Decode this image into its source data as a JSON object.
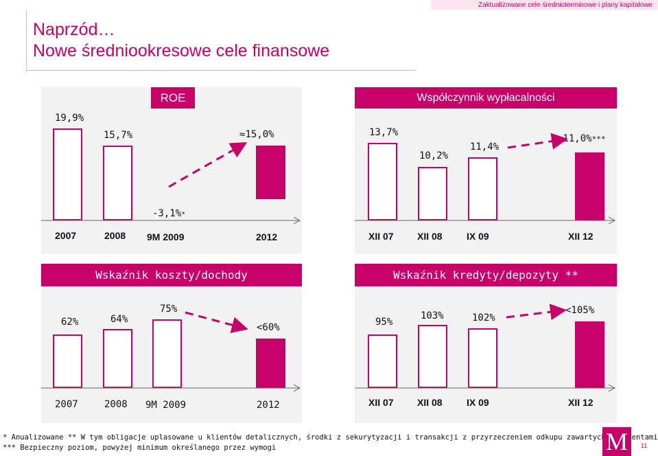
{
  "top_banner": "Zaktualizowane cele średnioterminowe i plany kapitałowe",
  "title_line1": "Naprzód…",
  "title_line2": "Nowe średniookresowe cele finansowe",
  "accent_color": "#c8006a",
  "panels": {
    "roe": {
      "title": "ROE",
      "values": [
        "19,9%",
        "15,7%",
        "-3,1%",
        "15,0%"
      ],
      "star": "*",
      "approx": "≈",
      "years": [
        "2007",
        "2008",
        "9M 2009",
        "2012"
      ]
    },
    "payout": {
      "title": "Współczynnik wypłacalności",
      "values": [
        "13,7%",
        "10,2%",
        "11,4%",
        ">11,0%"
      ],
      "stars": "***",
      "years": [
        "XII 07",
        "XII 08",
        "IX 09",
        "XII 12"
      ]
    },
    "cost_income": {
      "title": "Wskaźnik koszty/dochody",
      "values": [
        "62%",
        "64%",
        "75%",
        "<60%"
      ],
      "years": [
        "2007",
        "2008",
        "9M 2009",
        "2012"
      ]
    },
    "loans_deposits": {
      "title": "Wskaźnik kredyty/depozyty **",
      "values": [
        "95%",
        "103%",
        "102%",
        "<105%"
      ],
      "years": [
        "XII 07",
        "XII 08",
        "IX 09",
        "XII 12"
      ]
    }
  },
  "chart_data": [
    {
      "type": "bar",
      "title": "ROE",
      "categories": [
        "2007",
        "2008",
        "9M 2009",
        "2012"
      ],
      "values": [
        19.9,
        15.7,
        -3.1,
        15.0
      ],
      "unit": "%"
    },
    {
      "type": "bar",
      "title": "Współczynnik wypłacalności",
      "categories": [
        "XII 07",
        "XII 08",
        "IX 09",
        "XII 12"
      ],
      "values": [
        13.7,
        10.2,
        11.4,
        11.0
      ],
      "unit": "%"
    },
    {
      "type": "bar",
      "title": "Wskaźnik koszty/dochody",
      "categories": [
        "2007",
        "2008",
        "9M 2009",
        "2012"
      ],
      "values": [
        62,
        64,
        75,
        60
      ],
      "unit": "%"
    },
    {
      "type": "bar",
      "title": "Wskaźnik kredyty/depozyty **",
      "categories": [
        "XII 07",
        "XII 08",
        "IX 09",
        "XII 12"
      ],
      "values": [
        95,
        103,
        102,
        105
      ],
      "unit": "%"
    }
  ],
  "footnote_line1": "* Anualizowane  ** W tym obligacje uplasowane u klientów detalicznych, środki z sekurytyzacji i transakcji z przyrzeczeniem odkupu zawartych z klientami",
  "footnote_line2": "*** Bezpieczny poziom, powyżej minimum określanego przez wymogi",
  "logo_letter": "M",
  "page_number": "11"
}
